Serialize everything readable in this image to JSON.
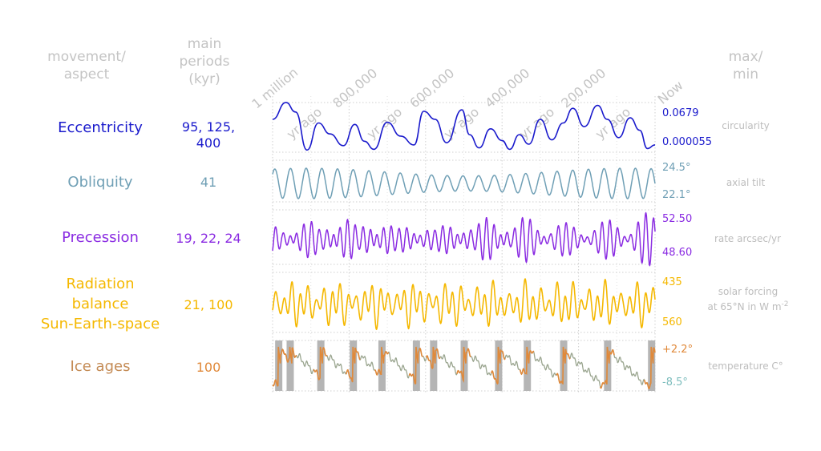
{
  "headers": {
    "aspect": [
      "movement/",
      "aspect"
    ],
    "periods": [
      "main",
      "periods",
      "(kyr)"
    ],
    "maxmin": [
      "max/",
      "min"
    ]
  },
  "time_axis": {
    "tick_labels": [
      [
        "1 million",
        "yr ago"
      ],
      [
        "800,000",
        "yr ago"
      ],
      [
        "600,000",
        "yr ago"
      ],
      [
        "400,000",
        "yr ago"
      ],
      [
        "200,000",
        "yr ago"
      ],
      [
        "Now"
      ]
    ],
    "range_kyr_ago": [
      1000,
      0
    ]
  },
  "rows": [
    {
      "name": "Eccentricity",
      "lines": [
        "Eccentricity"
      ],
      "periods": [
        "95, 125,",
        "400"
      ],
      "max": "0.0679",
      "min": "0.000055",
      "desc": [
        "circularity"
      ],
      "color": "#1a1acc"
    },
    {
      "name": "Obliquity",
      "lines": [
        "Obliquity"
      ],
      "periods": [
        "41"
      ],
      "max": "24.5°",
      "min": "22.1°",
      "desc": [
        "axial tilt"
      ],
      "color": "#6f9fb5"
    },
    {
      "name": "Precession",
      "lines": [
        "Precession"
      ],
      "periods": [
        "19, 22, 24"
      ],
      "max": "52.50",
      "min": "48.60",
      "desc": [
        "rate arcsec/yr"
      ],
      "color": "#8a2be2"
    },
    {
      "name": "Radiation balance Sun-Earth-space",
      "lines": [
        "Radiation",
        "balance",
        "Sun-Earth-space"
      ],
      "periods": [
        "21, 100"
      ],
      "max": "435",
      "min": "560",
      "desc": [
        "solar forcing",
        "at 65°N in W m"
      ],
      "desc_sup": "-2",
      "color": "#f5b800"
    },
    {
      "name": "Ice ages",
      "lines": [
        "Ice ages"
      ],
      "periods": [
        "100"
      ],
      "max": "+2.2°",
      "min": "-8.5°",
      "desc": [
        "temperature C°"
      ],
      "color": "#e0893a",
      "min_color": "#7dbdbd",
      "label_color": "#c48b55",
      "period_color": "#e0893a"
    }
  ],
  "chart_data": {
    "type": "line",
    "title": "",
    "xlabel": "",
    "x_unit": "kyr ago",
    "xlim": [
      1000,
      0
    ],
    "grid": true,
    "series": [
      {
        "name": "Eccentricity",
        "ylim": [
          5.5e-05,
          0.0679
        ],
        "x": [
          1000,
          965,
          940,
          910,
          880,
          850,
          815,
          785,
          760,
          735,
          700,
          665,
          630,
          605,
          575,
          545,
          505,
          485,
          460,
          430,
          400,
          380,
          355,
          330,
          300,
          270,
          240,
          215,
          185,
          150,
          125,
          95,
          65,
          40,
          20,
          0
        ],
        "y": [
          0.045,
          0.068,
          0.055,
          0.003,
          0.04,
          0.025,
          0.009,
          0.038,
          0.015,
          0.004,
          0.041,
          0.022,
          0.01,
          0.056,
          0.045,
          0.013,
          0.058,
          0.024,
          0.006,
          0.032,
          0.016,
          0.004,
          0.024,
          0.011,
          0.045,
          0.017,
          0.04,
          0.06,
          0.035,
          0.064,
          0.045,
          0.02,
          0.047,
          0.03,
          0.005,
          0.01
        ]
      },
      {
        "name": "Obliquity",
        "ylim": [
          22.1,
          24.5
        ],
        "period_kyr": 41,
        "amplitude_deg": [
          0.7,
          1.2
        ]
      },
      {
        "name": "Precession",
        "ylim": [
          48.6,
          52.5
        ],
        "periods_kyr": [
          19,
          22,
          24
        ]
      },
      {
        "name": "Radiation balance Sun-Earth-space",
        "ylim": [
          435,
          560
        ],
        "periods_kyr": [
          21,
          100
        ]
      },
      {
        "name": "Ice ages",
        "ylim": [
          -8.5,
          2.2
        ],
        "period_kyr": 100,
        "interglacials_kyr_ago": [
          985,
          955,
          875,
          790,
          715,
          625,
          580,
          500,
          410,
          335,
          240,
          125,
          10
        ]
      }
    ]
  }
}
